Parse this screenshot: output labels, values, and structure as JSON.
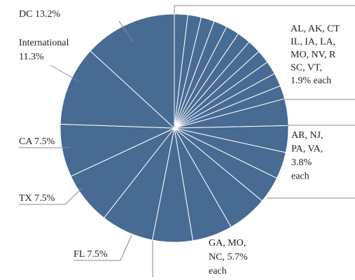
{
  "chart_data": {
    "type": "pie",
    "color": "#476b93",
    "stroke": "#ffffff",
    "groups": [
      {
        "label": [
          "AL, AK, CT",
          "IL, IA, LA,",
          "MO, NV, R",
          "SC, VT,",
          "1.9% each"
        ],
        "values": [
          1.9,
          1.9,
          1.9,
          1.9,
          1.9,
          1.9,
          1.9,
          1.9,
          1.9,
          1.9,
          1.9
        ]
      },
      {
        "label": [
          "AR, NJ,",
          "PA, VA,",
          "3.8%",
          "each"
        ],
        "values": [
          3.8,
          3.8,
          3.8,
          3.8
        ]
      },
      {
        "label": [
          "GA, MO,",
          "NC, 5.7%",
          "each"
        ],
        "values": [
          5.7,
          5.7,
          5.7
        ]
      },
      {
        "label": [
          "FL 7.5%"
        ],
        "values": [
          7.5
        ]
      },
      {
        "label": [
          "TX 7.5%"
        ],
        "values": [
          7.5
        ]
      },
      {
        "label": [
          "CA 7.5%"
        ],
        "values": [
          7.5
        ]
      },
      {
        "label": [
          "International",
          "11.3%"
        ],
        "values": [
          11.3
        ]
      },
      {
        "label": [
          "DC 13.2%"
        ],
        "values": [
          13.2
        ]
      }
    ]
  }
}
